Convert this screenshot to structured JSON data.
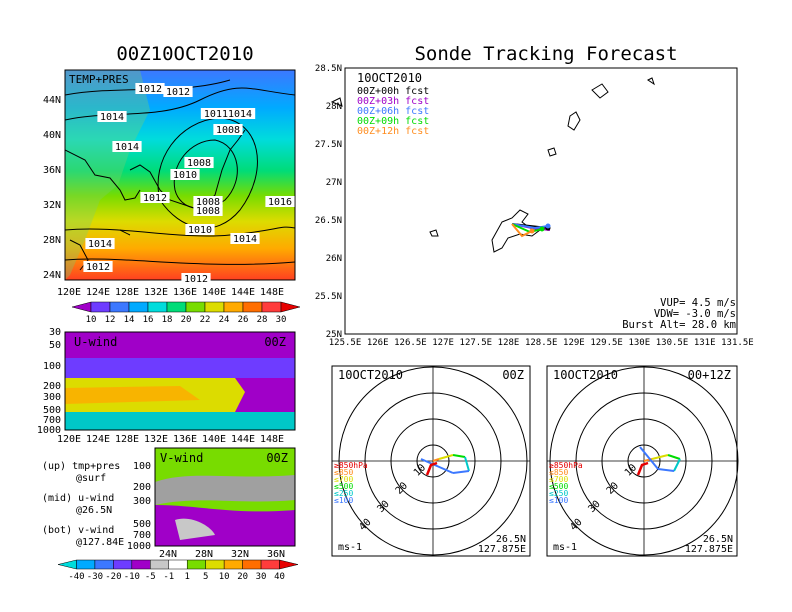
{
  "left_title": "00Z10OCT2010",
  "right_title": "Sonde Tracking Forecast",
  "map_panel": {
    "label": "TEMP+PRES",
    "lat_ticks": [
      "44N",
      "40N",
      "36N",
      "32N",
      "28N",
      "24N"
    ],
    "lon_ticks": [
      "120E",
      "124E",
      "128E",
      "132E",
      "136E",
      "140E",
      "144E",
      "148E"
    ],
    "isobar_labels": [
      {
        "text": "1012"
      },
      {
        "text": "1012"
      },
      {
        "text": "1014"
      },
      {
        "text": "10111014"
      },
      {
        "text": "1008"
      },
      {
        "text": "1014"
      },
      {
        "text": "1008"
      },
      {
        "text": "1010"
      },
      {
        "text": "1012"
      },
      {
        "text": "1008"
      },
      {
        "text": "1008"
      },
      {
        "text": "1016"
      },
      {
        "text": "1010"
      },
      {
        "text": "1014"
      },
      {
        "text": "1014"
      },
      {
        "text": "1012"
      },
      {
        "text": "1012"
      }
    ]
  },
  "temp_colorbar": {
    "labels": [
      "10",
      "12",
      "14",
      "16",
      "18",
      "20",
      "22",
      "24",
      "26",
      "28",
      "30"
    ],
    "colors": [
      "#a000c8",
      "#6e3cff",
      "#3c78ff",
      "#00aaff",
      "#00dcdc",
      "#00dc78",
      "#78dc00",
      "#dcdc00",
      "#ffaa00",
      "#ff6e00",
      "#ff3c3c",
      "#e60000"
    ]
  },
  "u_panel": {
    "label": "U-wind",
    "time": "00Z",
    "y_ticks": [
      "30",
      "50",
      "100",
      "200",
      "300",
      "500",
      "700",
      "1000"
    ],
    "x_ticks": [
      "120E",
      "124E",
      "128E",
      "132E",
      "136E",
      "140E",
      "144E",
      "148E"
    ]
  },
  "v_panel": {
    "label": "V-wind",
    "time": "00Z",
    "y_ticks": [
      "100",
      "200",
      "300",
      "500",
      "700",
      "1000"
    ],
    "x_ticks": [
      "24N",
      "28N",
      "32N",
      "36N"
    ]
  },
  "legend_notes": [
    {
      "line1": "(up) tmp+pres",
      "line2": "@surf"
    },
    {
      "line1": "(mid) u-wind",
      "line2": "@26.5N"
    },
    {
      "line1": "(bot) v-wind",
      "line2": "@127.84E"
    }
  ],
  "wind_colorbar": {
    "labels": [
      "-40",
      "-30",
      "-20",
      "-10",
      "-5",
      "-1",
      "1",
      "5",
      "10",
      "20",
      "30",
      "40"
    ],
    "colors": [
      "#00dcdc",
      "#00aaff",
      "#3c78ff",
      "#6e3cff",
      "#a000c8",
      "#c8c8c8",
      "#ffffff",
      "#78dc00",
      "#dcdc00",
      "#ffaa00",
      "#ff6e00",
      "#ff3c3c",
      "#e60000"
    ]
  },
  "track_panel": {
    "date": "10OCT2010",
    "lat_ticks": [
      "28.5N",
      "28N",
      "27.5N",
      "27N",
      "26.5N",
      "26N",
      "25.5N",
      "25N"
    ],
    "lon_ticks": [
      "125.5E",
      "126E",
      "126.5E",
      "127E",
      "127.5E",
      "128E",
      "128.5E",
      "129E",
      "129.5E",
      "130E",
      "130.5E",
      "131E",
      "131.5E"
    ],
    "forecasts": [
      {
        "label": "00Z+00h fcst",
        "color": "#000000"
      },
      {
        "label": "00Z+03h fcst",
        "color": "#a000c8"
      },
      {
        "label": "00Z+06h fcst",
        "color": "#3c78ff"
      },
      {
        "label": "00Z+09h fcst",
        "color": "#00dc00"
      },
      {
        "label": "00Z+12h fcst",
        "color": "#ff8c1e"
      }
    ],
    "vup": "VUP= 4.5 m/s",
    "vdw": "VDW= -3.0 m/s",
    "burst": "Burst Alt= 28.0 km"
  },
  "hodographs": [
    {
      "date": "10OCT2010",
      "time": "00Z",
      "ring_labels": [
        "10",
        "20",
        "30",
        "40"
      ],
      "units": "ms-1",
      "lat": "26.5N",
      "lon": "127.875E",
      "layers": [
        {
          "text": "≥850hPa",
          "color": "#e60000"
        },
        {
          "text": "≤850",
          "color": "#ff8c1e"
        },
        {
          "text": "≤700",
          "color": "#dcdc00"
        },
        {
          "text": "≤500",
          "color": "#00dc00"
        },
        {
          "text": "≤250",
          "color": "#00c8c8"
        },
        {
          "text": "≤100",
          "color": "#3c78ff"
        }
      ]
    },
    {
      "date": "10OCT2010",
      "time": "00+12Z",
      "ring_labels": [
        "10",
        "20",
        "30",
        "40"
      ],
      "units": "ms-1",
      "lat": "26.5N",
      "lon": "127.875E",
      "layers": [
        {
          "text": "≥850hPa",
          "color": "#e60000"
        },
        {
          "text": "≤850",
          "color": "#ff8c1e"
        },
        {
          "text": "≤700",
          "color": "#dcdc00"
        },
        {
          "text": "≤500",
          "color": "#00dc00"
        },
        {
          "text": "≤250",
          "color": "#00c8c8"
        },
        {
          "text": "≤100",
          "color": "#3c78ff"
        }
      ]
    }
  ]
}
